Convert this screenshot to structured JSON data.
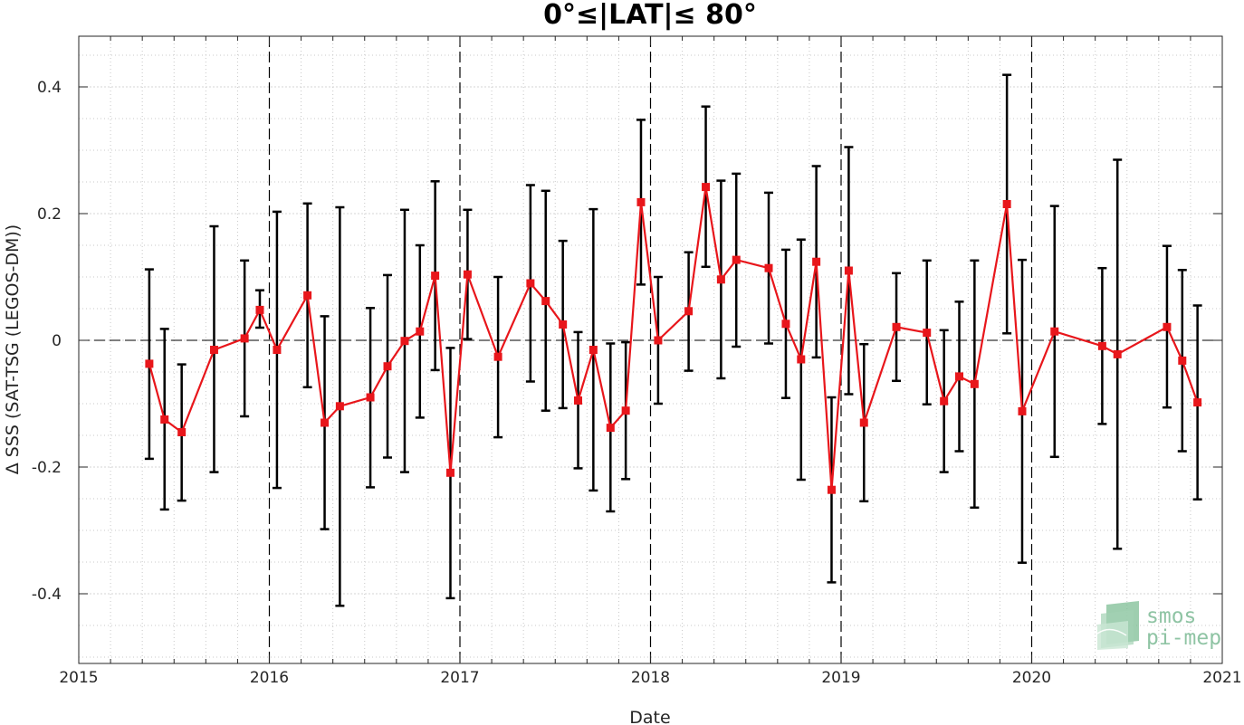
{
  "chart_data": {
    "type": "scatter",
    "title": "0°≤|LAT|≤ 80°",
    "xlabel": "Date",
    "ylabel": "Δ SSS (SAT-TSG (LEGOS-DM))",
    "xlim": [
      2015,
      2021
    ],
    "ylim": [
      -0.51,
      0.48
    ],
    "x_ticks": [
      "2015",
      "2016",
      "2017",
      "2018",
      "2019",
      "2020",
      "2021"
    ],
    "y_ticks": [
      "0.4",
      "0.2",
      "0",
      "-0.2",
      "-0.4"
    ],
    "y_tick_values": [
      0.4,
      0.2,
      0,
      -0.2,
      -0.4
    ],
    "grid": true,
    "minor_grid": true,
    "year_dashed_lines": true,
    "zero_dashed_line": true,
    "series": [
      {
        "marker": "square",
        "line": "solid",
        "color": "#e8161b",
        "errorbar_color": "#000000",
        "points": [
          {
            "x": 2015.37,
            "y": -0.037,
            "lo": -0.187,
            "hi": 0.112
          },
          {
            "x": 2015.45,
            "y": -0.125,
            "lo": -0.267,
            "hi": 0.018
          },
          {
            "x": 2015.54,
            "y": -0.145,
            "lo": -0.253,
            "hi": -0.038
          },
          {
            "x": 2015.71,
            "y": -0.015,
            "lo": -0.208,
            "hi": 0.18
          },
          {
            "x": 2015.87,
            "y": 0.003,
            "lo": -0.12,
            "hi": 0.126
          },
          {
            "x": 2015.95,
            "y": 0.048,
            "lo": 0.02,
            "hi": 0.079
          },
          {
            "x": 2016.04,
            "y": -0.015,
            "lo": -0.233,
            "hi": 0.203
          },
          {
            "x": 2016.2,
            "y": 0.071,
            "lo": -0.074,
            "hi": 0.216
          },
          {
            "x": 2016.29,
            "y": -0.13,
            "lo": -0.298,
            "hi": 0.038
          },
          {
            "x": 2016.37,
            "y": -0.104,
            "lo": -0.419,
            "hi": 0.21
          },
          {
            "x": 2016.53,
            "y": -0.09,
            "lo": -0.232,
            "hi": 0.051
          },
          {
            "x": 2016.62,
            "y": -0.041,
            "lo": -0.185,
            "hi": 0.103
          },
          {
            "x": 2016.71,
            "y": -0.001,
            "lo": -0.208,
            "hi": 0.206
          },
          {
            "x": 2016.79,
            "y": 0.014,
            "lo": -0.122,
            "hi": 0.15
          },
          {
            "x": 2016.87,
            "y": 0.102,
            "lo": -0.047,
            "hi": 0.251
          },
          {
            "x": 2016.95,
            "y": -0.209,
            "lo": -0.407,
            "hi": -0.012
          },
          {
            "x": 2017.04,
            "y": 0.104,
            "lo": 0.002,
            "hi": 0.206
          },
          {
            "x": 2017.2,
            "y": -0.026,
            "lo": -0.153,
            "hi": 0.1
          },
          {
            "x": 2017.37,
            "y": 0.09,
            "lo": -0.065,
            "hi": 0.245
          },
          {
            "x": 2017.45,
            "y": 0.062,
            "lo": -0.111,
            "hi": 0.236
          },
          {
            "x": 2017.54,
            "y": 0.025,
            "lo": -0.107,
            "hi": 0.157
          },
          {
            "x": 2017.62,
            "y": -0.095,
            "lo": -0.202,
            "hi": 0.013
          },
          {
            "x": 2017.7,
            "y": -0.015,
            "lo": -0.237,
            "hi": 0.207
          },
          {
            "x": 2017.79,
            "y": -0.138,
            "lo": -0.27,
            "hi": -0.005
          },
          {
            "x": 2017.87,
            "y": -0.111,
            "lo": -0.219,
            "hi": -0.003
          },
          {
            "x": 2017.95,
            "y": 0.218,
            "lo": 0.088,
            "hi": 0.348
          },
          {
            "x": 2018.04,
            "y": 0.0,
            "lo": -0.1,
            "hi": 0.1
          },
          {
            "x": 2018.2,
            "y": 0.046,
            "lo": -0.048,
            "hi": 0.139
          },
          {
            "x": 2018.29,
            "y": 0.242,
            "lo": 0.116,
            "hi": 0.369
          },
          {
            "x": 2018.37,
            "y": 0.096,
            "lo": -0.06,
            "hi": 0.252
          },
          {
            "x": 2018.45,
            "y": 0.127,
            "lo": -0.01,
            "hi": 0.263
          },
          {
            "x": 2018.62,
            "y": 0.114,
            "lo": -0.005,
            "hi": 0.233
          },
          {
            "x": 2018.71,
            "y": 0.026,
            "lo": -0.091,
            "hi": 0.143
          },
          {
            "x": 2018.79,
            "y": -0.03,
            "lo": -0.22,
            "hi": 0.159
          },
          {
            "x": 2018.87,
            "y": 0.124,
            "lo": -0.027,
            "hi": 0.275
          },
          {
            "x": 2018.95,
            "y": -0.236,
            "lo": -0.382,
            "hi": -0.09
          },
          {
            "x": 2019.04,
            "y": 0.11,
            "lo": -0.085,
            "hi": 0.305
          },
          {
            "x": 2019.12,
            "y": -0.13,
            "lo": -0.254,
            "hi": -0.006
          },
          {
            "x": 2019.29,
            "y": 0.021,
            "lo": -0.064,
            "hi": 0.106
          },
          {
            "x": 2019.45,
            "y": 0.012,
            "lo": -0.101,
            "hi": 0.126
          },
          {
            "x": 2019.54,
            "y": -0.096,
            "lo": -0.208,
            "hi": 0.016
          },
          {
            "x": 2019.62,
            "y": -0.057,
            "lo": -0.175,
            "hi": 0.061
          },
          {
            "x": 2019.7,
            "y": -0.069,
            "lo": -0.264,
            "hi": 0.126
          },
          {
            "x": 2019.87,
            "y": 0.215,
            "lo": 0.011,
            "hi": 0.419
          },
          {
            "x": 2019.95,
            "y": -0.112,
            "lo": -0.351,
            "hi": 0.127
          },
          {
            "x": 2020.12,
            "y": 0.014,
            "lo": -0.184,
            "hi": 0.212
          },
          {
            "x": 2020.37,
            "y": -0.009,
            "lo": -0.132,
            "hi": 0.114
          },
          {
            "x": 2020.45,
            "y": -0.022,
            "lo": -0.329,
            "hi": 0.285
          },
          {
            "x": 2020.71,
            "y": 0.021,
            "lo": -0.106,
            "hi": 0.149
          },
          {
            "x": 2020.79,
            "y": -0.032,
            "lo": -0.175,
            "hi": 0.111
          },
          {
            "x": 2020.87,
            "y": -0.098,
            "lo": -0.251,
            "hi": 0.055
          }
        ]
      }
    ]
  },
  "logo": {
    "line1": "smos",
    "line2": "pi-mep"
  }
}
